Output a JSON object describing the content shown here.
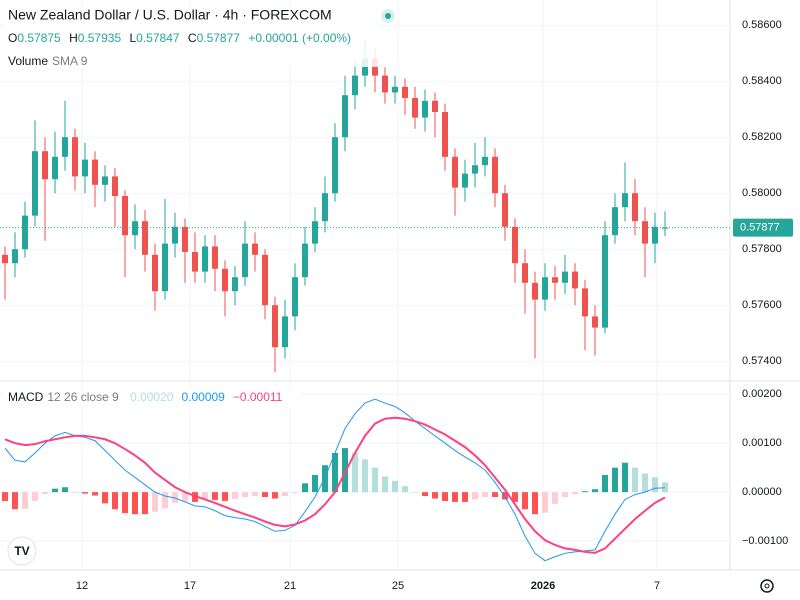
{
  "header": {
    "title": "New Zealand Dollar / U.S. Dollar · 4h · FOREXCOM",
    "ohlc": [
      {
        "key": "O",
        "value": "0.57875"
      },
      {
        "key": "H",
        "value": "0.57935"
      },
      {
        "key": "L",
        "value": "0.57847"
      },
      {
        "key": "C",
        "value": "0.57877"
      }
    ],
    "change": "+0.00001 (+0.00%)",
    "volume": "Volume",
    "volume_params": "SMA 9"
  },
  "chart_data": [
    {
      "type": "candlestick",
      "up_color": "#26a69a",
      "down_color": "#ef5350",
      "ylim": [
        0.5734,
        0.5869
      ],
      "yticks": [
        {
          "value": 0.586,
          "label": "0.58600"
        },
        {
          "value": 0.584,
          "label": "0.58400"
        },
        {
          "value": 0.582,
          "label": "0.58200"
        },
        {
          "value": 0.58,
          "label": "0.58000"
        },
        {
          "value": 0.578,
          "label": "0.57800"
        },
        {
          "value": 0.576,
          "label": "0.57600"
        },
        {
          "value": 0.574,
          "label": "0.57400"
        }
      ],
      "xticks": [
        {
          "value": 7.7,
          "label": "12"
        },
        {
          "value": 18.5,
          "label": "17"
        },
        {
          "value": 28.5,
          "label": "21"
        },
        {
          "value": 39.3,
          "label": "25"
        },
        {
          "value": 53.8,
          "label": "2026"
        },
        {
          "value": 65.2,
          "label": "7"
        }
      ],
      "last_price": {
        "value": 0.57877,
        "label": "0.57877"
      },
      "ohlc": [
        [
          0.5778,
          0.5781,
          0.5762,
          0.5775
        ],
        [
          0.5775,
          0.5786,
          0.577,
          0.578
        ],
        [
          0.578,
          0.5797,
          0.5777,
          0.5792
        ],
        [
          0.5792,
          0.5826,
          0.5788,
          0.5815
        ],
        [
          0.5815,
          0.582,
          0.5783,
          0.5805
        ],
        [
          0.5805,
          0.5822,
          0.58,
          0.5813
        ],
        [
          0.5813,
          0.5833,
          0.5808,
          0.582
        ],
        [
          0.582,
          0.5823,
          0.5801,
          0.5806
        ],
        [
          0.5806,
          0.5818,
          0.58,
          0.5812
        ],
        [
          0.5812,
          0.5815,
          0.5795,
          0.5803
        ],
        [
          0.5803,
          0.581,
          0.5797,
          0.5806
        ],
        [
          0.5806,
          0.5809,
          0.5788,
          0.5799
        ],
        [
          0.5799,
          0.5801,
          0.577,
          0.5785
        ],
        [
          0.5785,
          0.5796,
          0.578,
          0.579
        ],
        [
          0.579,
          0.5794,
          0.5772,
          0.5778
        ],
        [
          0.5778,
          0.5782,
          0.5758,
          0.5765
        ],
        [
          0.5765,
          0.5798,
          0.5762,
          0.5782
        ],
        [
          0.5782,
          0.5793,
          0.5777,
          0.5788
        ],
        [
          0.5788,
          0.5791,
          0.5768,
          0.5779
        ],
        [
          0.5779,
          0.5786,
          0.5768,
          0.5772
        ],
        [
          0.5772,
          0.5785,
          0.5768,
          0.5781
        ],
        [
          0.5781,
          0.5785,
          0.5765,
          0.5773
        ],
        [
          0.5773,
          0.5776,
          0.5756,
          0.5765
        ],
        [
          0.5765,
          0.5774,
          0.576,
          0.577
        ],
        [
          0.577,
          0.579,
          0.5767,
          0.5782
        ],
        [
          0.5782,
          0.5786,
          0.5772,
          0.5778
        ],
        [
          0.5778,
          0.578,
          0.5755,
          0.576
        ],
        [
          0.576,
          0.5763,
          0.5736,
          0.5745
        ],
        [
          0.5745,
          0.5762,
          0.5741,
          0.5756
        ],
        [
          0.5756,
          0.5775,
          0.5751,
          0.577
        ],
        [
          0.577,
          0.5788,
          0.5767,
          0.5782
        ],
        [
          0.5782,
          0.5795,
          0.5779,
          0.579
        ],
        [
          0.579,
          0.5806,
          0.5786,
          0.58
        ],
        [
          0.58,
          0.5825,
          0.5797,
          0.582
        ],
        [
          0.582,
          0.5842,
          0.5815,
          0.5835
        ],
        [
          0.5835,
          0.5848,
          0.583,
          0.5842
        ],
        [
          0.5842,
          0.5855,
          0.5838,
          0.5848
        ],
        [
          0.5848,
          0.5852,
          0.5836,
          0.5842
        ],
        [
          0.5842,
          0.5845,
          0.5832,
          0.5836
        ],
        [
          0.5836,
          0.5842,
          0.5832,
          0.5838
        ],
        [
          0.5838,
          0.5841,
          0.5828,
          0.5834
        ],
        [
          0.5834,
          0.5838,
          0.5823,
          0.5827
        ],
        [
          0.5827,
          0.5837,
          0.5822,
          0.5833
        ],
        [
          0.5833,
          0.5836,
          0.582,
          0.5829
        ],
        [
          0.5829,
          0.5832,
          0.5808,
          0.5813
        ],
        [
          0.5813,
          0.5816,
          0.5792,
          0.5802
        ],
        [
          0.5802,
          0.5812,
          0.5797,
          0.5807
        ],
        [
          0.5807,
          0.5818,
          0.5802,
          0.581
        ],
        [
          0.581,
          0.582,
          0.5806,
          0.5813
        ],
        [
          0.5813,
          0.5816,
          0.5795,
          0.58
        ],
        [
          0.58,
          0.5803,
          0.5783,
          0.5788
        ],
        [
          0.5788,
          0.5791,
          0.5768,
          0.5775
        ],
        [
          0.5775,
          0.578,
          0.5757,
          0.5768
        ],
        [
          0.5768,
          0.5772,
          0.5741,
          0.5762
        ],
        [
          0.5762,
          0.5775,
          0.5758,
          0.577
        ],
        [
          0.577,
          0.5774,
          0.5762,
          0.5768
        ],
        [
          0.5768,
          0.5778,
          0.5764,
          0.5772
        ],
        [
          0.5772,
          0.5775,
          0.576,
          0.5766
        ],
        [
          0.5766,
          0.5769,
          0.5744,
          0.5756
        ],
        [
          0.5756,
          0.576,
          0.5742,
          0.5752
        ],
        [
          0.5752,
          0.579,
          0.575,
          0.5785
        ],
        [
          0.5785,
          0.58,
          0.5782,
          0.5795
        ],
        [
          0.5795,
          0.5811,
          0.579,
          0.58
        ],
        [
          0.58,
          0.5805,
          0.5785,
          0.579
        ],
        [
          0.579,
          0.5795,
          0.577,
          0.5782
        ],
        [
          0.5782,
          0.5793,
          0.5775,
          0.5788
        ],
        [
          0.57875,
          0.57935,
          0.57847,
          0.57877
        ]
      ]
    },
    {
      "type": "macd",
      "title": "MACD",
      "params": "12 26 close 9",
      "ylim": [
        -0.00155,
        0.00225
      ],
      "yticks": [
        {
          "value": 0.002,
          "label": "0.00200"
        },
        {
          "value": 0.001,
          "label": "0.00100"
        },
        {
          "value": 0,
          "label": "0.00000"
        },
        {
          "value": -0.001,
          "label": "−0.00100"
        }
      ],
      "hist_colors": [
        "#26a69a",
        "#b2dfdb",
        "#ff5252",
        "#ffcdd2"
      ],
      "series": [
        {
          "name": "Histogram",
          "label": "0.00020",
          "color": "#b2dfdb",
          "values": [
            -0.00018,
            -0.00035,
            -0.00034,
            -0.00018,
            -4e-05,
            7e-05,
            0.0001,
            0,
            -3e-05,
            -7e-05,
            -0.00023,
            -0.00035,
            -0.00043,
            -0.00045,
            -0.00045,
            -0.0004,
            -0.00033,
            -0.00022,
            -0.0002,
            -0.0002,
            -0.00015,
            -0.00016,
            -0.00018,
            -0.00014,
            -0.0001,
            -8e-05,
            -0.0001,
            -0.00013,
            -8e-05,
            -2e-05,
            0.00018,
            0.00035,
            0.00055,
            0.0008,
            0.0009,
            0.0008,
            0.00067,
            0.0005,
            0.00032,
            0.00023,
            0.00012,
            0,
            -8e-05,
            -0.00013,
            -0.00018,
            -0.0002,
            -0.0002,
            -0.00015,
            -0.0001,
            -0.0001,
            -0.00015,
            -0.0002,
            -0.00035,
            -0.00045,
            -0.00042,
            -0.00024,
            -0.0001,
            -4e-05,
            2e-05,
            6e-05,
            0.00035,
            0.0005,
            0.0006,
            0.0005,
            0.00038,
            0.0003,
            0.0002
          ]
        },
        {
          "name": "MACD",
          "label": "0.00009",
          "color": "#2196f3",
          "values": [
            0.0009,
            0.00065,
            0.00062,
            0.0008,
            0.001,
            0.00115,
            0.00122,
            0.00115,
            0.00112,
            0.00105,
            0.00085,
            0.00065,
            0.00045,
            0.0003,
            0.00015,
            0,
            -8e-05,
            -0.00012,
            -0.0002,
            -0.00028,
            -0.0003,
            -0.00038,
            -0.00048,
            -0.00052,
            -0.00055,
            -0.0006,
            -0.0007,
            -0.0008,
            -0.00078,
            -0.00068,
            -0.0004,
            -0.0001,
            0.0003,
            0.0008,
            0.0013,
            0.0016,
            0.00182,
            0.0019,
            0.00182,
            0.00175,
            0.00162,
            0.00145,
            0.0013,
            0.00115,
            0.001,
            0.00085,
            0.00072,
            0.0006,
            0.00045,
            0.0002,
            -0.0001,
            -0.00045,
            -0.0009,
            -0.00125,
            -0.0014,
            -0.00132,
            -0.00125,
            -0.00122,
            -0.0012,
            -0.00118,
            -0.0008,
            -0.00045,
            -0.00015,
            -5e-05,
            0,
            8e-05,
            9e-05
          ]
        },
        {
          "name": "Signal",
          "label": "−0.00011",
          "color": "#ff4081",
          "values": [
            0.00108,
            0.001,
            0.00096,
            0.00098,
            0.00104,
            0.00108,
            0.00112,
            0.00115,
            0.00115,
            0.00112,
            0.00108,
            0.001,
            0.00088,
            0.00075,
            0.0006,
            0.0004,
            0.00025,
            0.0001,
            0,
            -8e-05,
            -0.00015,
            -0.00022,
            -0.0003,
            -0.00038,
            -0.00045,
            -0.00052,
            -0.0006,
            -0.00067,
            -0.0007,
            -0.00066,
            -0.00058,
            -0.00045,
            -0.00025,
            0,
            0.0004,
            0.0008,
            0.00115,
            0.0014,
            0.0015,
            0.00152,
            0.0015,
            0.00145,
            0.00138,
            0.00128,
            0.00118,
            0.00105,
            0.00092,
            0.00075,
            0.00055,
            0.0003,
            5e-05,
            -0.00025,
            -0.00055,
            -0.0008,
            -0.00098,
            -0.00108,
            -0.00115,
            -0.00118,
            -0.00122,
            -0.00124,
            -0.00115,
            -0.00095,
            -0.00075,
            -0.00055,
            -0.00038,
            -0.00022,
            -0.00011
          ]
        }
      ]
    }
  ]
}
